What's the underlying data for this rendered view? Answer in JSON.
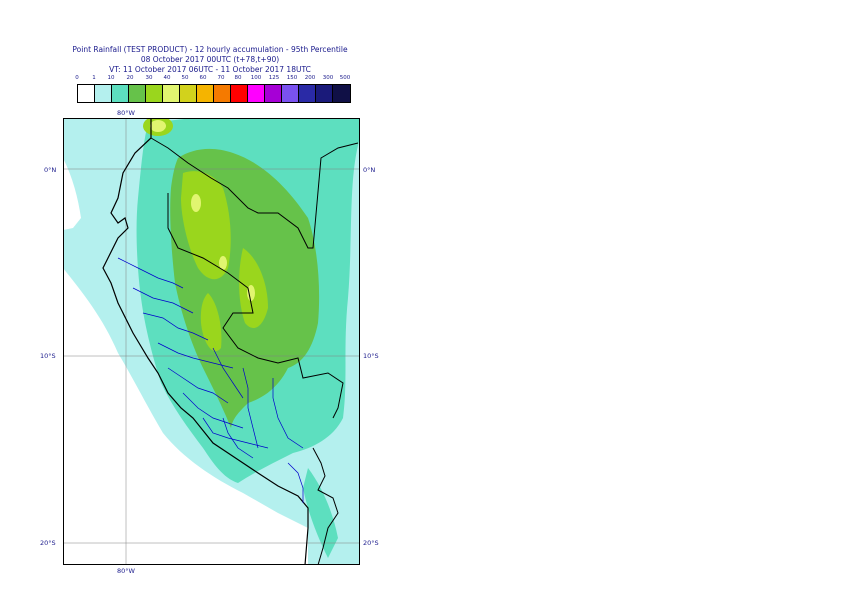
{
  "title": {
    "line1": "Point Rainfall (TEST PRODUCT) - 12 hourly accumulation - 95th Percentile",
    "line2": "08 October 2017 00UTC (t+78,t+90)",
    "line3": "VT: 11 October 2017 06UTC - 11 October 2017 18UTC"
  },
  "legend": {
    "labels": [
      "0",
      "1",
      "10",
      "20",
      "30",
      "40",
      "50",
      "60",
      "70",
      "80",
      "100",
      "125",
      "150",
      "200",
      "300",
      "500"
    ],
    "colors": [
      "#ffffff",
      "#b4f0ee",
      "#5ddfbf",
      "#66c24a",
      "#9ad61d",
      "#e1f570",
      "#d2d21c",
      "#f5b400",
      "#f57a00",
      "#ff0000",
      "#ff00ff",
      "#a600d6",
      "#7a52f0",
      "#2a2aa6",
      "#1a1a7a",
      "#101046"
    ]
  },
  "map": {
    "lat_labels": [
      "0°N",
      "10°S",
      "20°S"
    ],
    "lon_labels": [
      "80°W"
    ],
    "colors": {
      "background_rain": "#b4f0ee",
      "ocean_dry": "#ffffff",
      "band_10_20": "#5ddfbf",
      "band_20_30": "#66c24a",
      "band_30_40": "#9ad61d",
      "band_40_50": "#e1f570",
      "border_country": "#000000",
      "border_region": "#0000cc",
      "graticule": "#808080"
    }
  }
}
